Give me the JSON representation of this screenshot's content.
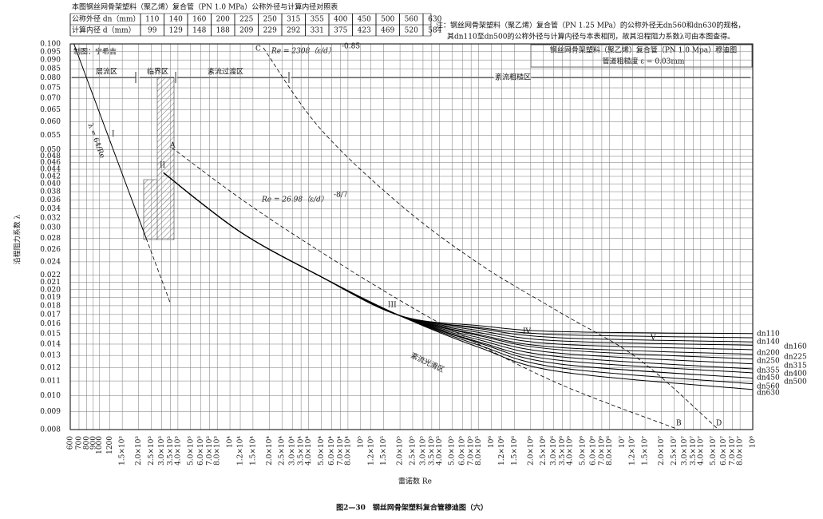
{
  "chart_data": {
    "type": "line",
    "log_x": true,
    "log_y": true,
    "grid": true,
    "xlabel": "雷诺数 Re",
    "ylabel": "沿程阻力系数 λ",
    "xlim": [
      600,
      100000000
    ],
    "ylim": [
      0.008,
      0.1
    ],
    "xticks": [
      600,
      700,
      800,
      900,
      1000,
      1200,
      {
        "value": 1500,
        "label": "1.5×10³"
      },
      {
        "value": 2000,
        "label": "2.0×10³"
      },
      {
        "value": 2500,
        "label": "2.5×10³"
      },
      {
        "value": 3000,
        "label": "3.0×10³"
      },
      {
        "value": 3500,
        "label": "3.5×10³"
      },
      {
        "value": 4000,
        "label": "4.0×10³"
      },
      {
        "value": 5000,
        "label": "5.0×10³"
      },
      {
        "value": 6000,
        "label": "6.0×10³"
      },
      {
        "value": 7000,
        "label": "7.0×10³"
      },
      {
        "value": 8000,
        "label": "8.0×10³"
      },
      {
        "value": 10000,
        "label": "10⁴"
      },
      {
        "value": 12000,
        "label": "1.2×10⁴"
      },
      {
        "value": 15000,
        "label": "1.5×10⁴"
      },
      {
        "value": 20000,
        "label": "2.0×10⁴"
      },
      {
        "value": 25000,
        "label": "2.5×10⁴"
      },
      {
        "value": 30000,
        "label": "3.0×10⁴"
      },
      {
        "value": 35000,
        "label": "3.5×10⁴"
      },
      {
        "value": 40000,
        "label": "4.0×10⁴"
      },
      {
        "value": 50000,
        "label": "5.0×10⁴"
      },
      {
        "value": 60000,
        "label": "6.0×10⁴"
      },
      {
        "value": 70000,
        "label": "7.0×10⁴"
      },
      {
        "value": 80000,
        "label": "8.0×10⁴"
      },
      {
        "value": 100000,
        "label": "10⁵"
      },
      {
        "value": 120000,
        "label": "1.2×10⁵"
      },
      {
        "value": 150000,
        "label": "1.5×10⁵"
      },
      {
        "value": 200000,
        "label": "2.0×10⁵"
      },
      {
        "value": 250000,
        "label": "2.5×10⁵"
      },
      {
        "value": 300000,
        "label": "3.0×10⁵"
      },
      {
        "value": 350000,
        "label": "3.5×10⁵"
      },
      {
        "value": 400000,
        "label": "4.0×10⁵"
      },
      {
        "value": 500000,
        "label": "5.0×10⁵"
      },
      {
        "value": 600000,
        "label": "6.0×10⁵"
      },
      {
        "value": 700000,
        "label": "7.0×10⁵"
      },
      {
        "value": 800000,
        "label": "8.0×10⁵"
      },
      {
        "value": 1000000,
        "label": "10⁶"
      },
      {
        "value": 1200000,
        "label": "1.2×10⁶"
      },
      {
        "value": 1500000,
        "label": "1.5×10⁶"
      },
      {
        "value": 2000000,
        "label": "2.0×10⁶"
      },
      {
        "value": 2500000,
        "label": "2.5×10⁶"
      },
      {
        "value": 3000000,
        "label": "3.0×10⁶"
      },
      {
        "value": 3500000,
        "label": "3.5×10⁶"
      },
      {
        "value": 4000000,
        "label": "4.0×10⁶"
      },
      {
        "value": 5000000,
        "label": "5.0×10⁶"
      },
      {
        "value": 6000000,
        "label": "6.0×10⁶"
      },
      {
        "value": 7000000,
        "label": "7.0×10⁶"
      },
      {
        "value": 8000000,
        "label": "8.0×10⁶"
      },
      {
        "value": 10000000,
        "label": "10⁷"
      },
      {
        "value": 12000000,
        "label": "1.2×10⁷"
      },
      {
        "value": 15000000,
        "label": "1.5×10⁷"
      },
      {
        "value": 20000000,
        "label": "2.0×10⁷"
      },
      {
        "value": 25000000,
        "label": "2.5×10⁷"
      },
      {
        "value": 30000000,
        "label": "3.0×10⁷"
      },
      {
        "value": 35000000,
        "label": "3.5×10⁷"
      },
      {
        "value": 40000000,
        "label": "4.0×10⁷"
      },
      {
        "value": 50000000,
        "label": "5.0×10⁷"
      },
      {
        "value": 60000000,
        "label": "6.0×10⁷"
      },
      {
        "value": 70000000,
        "label": "7.0×10⁷"
      },
      {
        "value": 80000000,
        "label": "8.0×10⁷"
      },
      {
        "value": 100000000,
        "label": "10⁸"
      }
    ],
    "yticks": [
      {
        "value": 0.1,
        "label": "0.100"
      },
      0.095,
      {
        "value": 0.09,
        "label": "0.090"
      },
      0.085,
      {
        "value": 0.08,
        "label": "0.080"
      },
      0.075,
      {
        "value": 0.07,
        "label": "0.070"
      },
      0.065,
      {
        "value": 0.06,
        "label": "0.060"
      },
      0.055,
      {
        "value": 0.05,
        "label": "0.050"
      },
      0.048,
      0.046,
      0.044,
      0.042,
      {
        "value": 0.04,
        "label": "0.040"
      },
      0.038,
      0.036,
      0.034,
      0.032,
      {
        "value": 0.03,
        "label": "0.030"
      },
      0.028,
      0.026,
      0.024,
      0.022,
      0.021,
      {
        "value": 0.02,
        "label": "0.020"
      },
      0.019,
      0.018,
      0.017,
      0.016,
      0.015,
      0.014,
      0.013,
      0.012,
      0.011,
      {
        "value": 0.01,
        "label": "0.010"
      },
      0.009,
      0.008
    ],
    "x": [
      3100,
      11800,
      48300,
      197000,
      806000,
      3280000,
      100000000
    ],
    "series": [
      {
        "name": "dn110",
        "color": "#000",
        "values": [
          0.043,
          0.0293,
          0.0219,
          0.0169,
          0.0158,
          0.0152,
          0.015
        ]
      },
      {
        "name": "dn140",
        "color": "#000",
        "values": [
          0.043,
          0.0293,
          0.0219,
          0.0169,
          0.0156,
          0.0149,
          0.0146
        ]
      },
      {
        "name": "dn160",
        "color": "#000",
        "values": [
          0.043,
          0.0293,
          0.0219,
          0.0169,
          0.0155,
          0.0146,
          0.0142
        ]
      },
      {
        "name": "dn200",
        "color": "#000",
        "values": [
          0.043,
          0.0293,
          0.0219,
          0.0169,
          0.0153,
          0.0143,
          0.0139
        ]
      },
      {
        "name": "dn225",
        "color": "#000",
        "values": [
          0.043,
          0.0293,
          0.0219,
          0.0169,
          0.0151,
          0.014,
          0.0135
        ]
      },
      {
        "name": "dn250",
        "color": "#000",
        "values": [
          0.043,
          0.0293,
          0.0219,
          0.0169,
          0.0149,
          0.0137,
          0.0131
        ]
      },
      {
        "name": "dn315",
        "color": "#000",
        "values": [
          0.043,
          0.0293,
          0.0219,
          0.0169,
          0.0148,
          0.0135,
          0.0127
        ]
      },
      {
        "name": "dn355",
        "color": "#000",
        "values": [
          0.043,
          0.0293,
          0.0219,
          0.0169,
          0.0146,
          0.0132,
          0.0123
        ]
      },
      {
        "name": "dn400",
        "color": "#000",
        "values": [
          0.043,
          0.0293,
          0.0219,
          0.0169,
          0.0144,
          0.0129,
          0.0119
        ]
      },
      {
        "name": "dn450",
        "color": "#000",
        "values": [
          0.043,
          0.0293,
          0.0219,
          0.0169,
          0.0142,
          0.0126,
          0.0116
        ]
      },
      {
        "name": "dn500",
        "color": "#000",
        "values": [
          0.043,
          0.0293,
          0.0219,
          0.0169,
          0.0141,
          0.0123,
          0.0112
        ]
      },
      {
        "name": "dn560",
        "color": "#000",
        "values": [
          0.043,
          0.0293,
          0.0219,
          0.0169,
          0.0139,
          0.012,
          0.0108
        ]
      },
      {
        "name": "dn630",
        "color": "#000",
        "values": [
          0.043,
          0.0293,
          0.0219,
          0.0169,
          0.0137,
          0.0117,
          0.0104
        ]
      },
      {
        "name": "λ = 64/Re",
        "color": "#000",
        "x": [
          640,
          2286
        ],
        "values": [
          0.1,
          0.028
        ]
      },
      {
        "color": "#000",
        "dashed": true,
        "x": [
          2286,
          3500
        ],
        "values": [
          0.028,
          0.0183
        ]
      },
      {
        "color": "#000",
        "dashed": true,
        "x": [
          3580,
          15700,
          97500,
          527000,
          3290000,
          27100000
        ],
        "values": [
          0.0507,
          0.0339,
          0.0219,
          0.0152,
          0.0108,
          0.008
        ]
      },
      {
        "color": "#000",
        "dashed": true,
        "x": [
          18000,
          48300,
          197000,
          806000,
          3290000,
          13400000,
          54700000
        ],
        "values": [
          0.0975,
          0.0578,
          0.0351,
          0.0237,
          0.0173,
          0.0127,
          0.008
        ]
      }
    ],
    "regions": [
      "层流区",
      "临界区",
      "紊流过渡区",
      "紊流粗糙区",
      "紊流光滑区"
    ],
    "zones": [
      "I",
      "II",
      "III",
      "IV",
      "V"
    ],
    "points": [
      "A",
      "B",
      "C",
      "D"
    ],
    "equations": [
      {
        "text": "Re = 2308（ε/d）",
        "exponent": "-0.85"
      },
      {
        "text": "Re = 26.98（ε/d）",
        "exponent": "-8/7"
      }
    ],
    "box": [
      "钢丝网骨架塑料（聚乙烯）复合管（PN 1.0 Mpa）穆迪图",
      "管道粗糙度 ε = 0.03mm"
    ],
    "drafter": "制图：宁希吉"
  },
  "table": {
    "title": "本图钢丝网骨架塑料（聚乙烯）复合管（PN 1.0 MPa）公称外径与计算内径对照表",
    "rows": [
      [
        "公称外径 dn（mm）",
        "110",
        "140",
        "160",
        "200",
        "225",
        "250",
        "315",
        "355",
        "400",
        "450",
        "500",
        "560",
        "630"
      ],
      [
        "计算内径 d（mm）",
        "99",
        "129",
        "148",
        "188",
        "209",
        "229",
        "292",
        "331",
        "375",
        "423",
        "469",
        "520",
        "584"
      ]
    ]
  },
  "note": [
    "注：钢丝网骨架塑料（聚乙烯）复合管（PN 1.25 MPa）的公称外径无dn560和dn630的规格，",
    "其dn110至dn500的公称外径与计算内径与本表相同，故其沿程阻力系数λ可由本图查得。"
  ],
  "caption": "图2—30　钢丝网骨架塑料复合管穆迪图（六）"
}
